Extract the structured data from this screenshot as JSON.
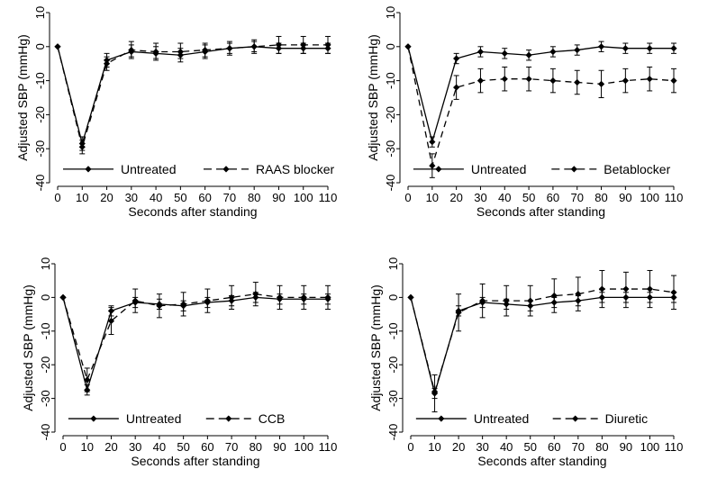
{
  "chart_data": [
    {
      "type": "line",
      "xlabel": "Seconds after standing",
      "ylabel": "Adjusted SBP (mmHg)",
      "xlim": [
        0,
        110
      ],
      "ylim": [
        -40,
        10
      ],
      "x": [
        0,
        10,
        20,
        30,
        40,
        50,
        60,
        70,
        80,
        90,
        100,
        110
      ],
      "xticks": [
        "0",
        "10",
        "20",
        "30",
        "40",
        "50",
        "60",
        "70",
        "80",
        "90",
        "100",
        "110"
      ],
      "yticks": [
        "10",
        "0",
        "-10",
        "-20",
        "-30",
        "-40"
      ],
      "grid": false,
      "legend_position": "bottom",
      "series": [
        {
          "name": "Untreated",
          "style": "solid",
          "values": [
            0,
            -28.5,
            -4,
            -1.5,
            -2,
            -2.5,
            -1.5,
            -0.5,
            0,
            -0.5,
            -0.5,
            -0.5
          ],
          "lower": [
            0,
            -30.5,
            -6,
            -3.5,
            -4,
            -4.5,
            -3.5,
            -2,
            -1.5,
            -2,
            -2,
            -2
          ],
          "upper": [
            0,
            -26.5,
            -2,
            0.5,
            0,
            -0.5,
            0.5,
            1,
            1.5,
            1,
            1,
            1
          ]
        },
        {
          "name": "RAAS blocker",
          "style": "dashed",
          "values": [
            0,
            -29.5,
            -5,
            -1,
            -1.5,
            -1.5,
            -1,
            -0.5,
            0,
            0.5,
            0.5,
            0.5
          ],
          "lower": [
            0,
            -31.5,
            -7,
            -3,
            -3.5,
            -3.5,
            -3,
            -2.5,
            -2,
            -2,
            -2,
            -2
          ],
          "upper": [
            0,
            -27.5,
            -3,
            1.5,
            1,
            1,
            1,
            1.5,
            2,
            3,
            3,
            3
          ]
        }
      ]
    },
    {
      "type": "line",
      "xlabel": "Seconds after standing",
      "ylabel": "Adjusted SBP (mmHg)",
      "xlim": [
        0,
        110
      ],
      "ylim": [
        -40,
        10
      ],
      "x": [
        0,
        10,
        20,
        30,
        40,
        50,
        60,
        70,
        80,
        90,
        100,
        110
      ],
      "xticks": [
        "0",
        "10",
        "20",
        "30",
        "40",
        "50",
        "60",
        "70",
        "80",
        "90",
        "100",
        "110"
      ],
      "yticks": [
        "10",
        "0",
        "-10",
        "-20",
        "-30",
        "-40"
      ],
      "grid": false,
      "legend_position": "bottom",
      "series": [
        {
          "name": "Untreated",
          "style": "solid",
          "values": [
            0,
            -28,
            -3.5,
            -1.5,
            -2,
            -2.5,
            -1.5,
            -1,
            0,
            -0.5,
            -0.5,
            -0.5
          ],
          "lower": [
            0,
            -29.5,
            -5,
            -3,
            -3.5,
            -4,
            -3,
            -2.5,
            -1.5,
            -2,
            -2,
            -2
          ],
          "upper": [
            0,
            -26.5,
            -2,
            0,
            -0.5,
            -1,
            0,
            0.5,
            1.5,
            1,
            1,
            1
          ]
        },
        {
          "name": "Betablocker",
          "style": "dashed",
          "values": [
            0,
            -35,
            -12,
            -10,
            -9.5,
            -9.5,
            -10,
            -10.5,
            -11,
            -10,
            -9.5,
            -10
          ],
          "lower": [
            0,
            -38.5,
            -15.5,
            -13.5,
            -13,
            -13,
            -13.5,
            -14,
            -15,
            -13.5,
            -13,
            -13.5
          ],
          "upper": [
            0,
            -31.5,
            -8.5,
            -6.5,
            -6,
            -6,
            -6.5,
            -7,
            -7,
            -6.5,
            -6,
            -6.5
          ]
        }
      ]
    },
    {
      "type": "line",
      "xlabel": "Seconds after standing",
      "ylabel": "Adjusted SBP (mmHg)",
      "xlim": [
        0,
        110
      ],
      "ylim": [
        -40,
        10
      ],
      "x": [
        0,
        10,
        20,
        30,
        40,
        50,
        60,
        70,
        80,
        90,
        100,
        110
      ],
      "xticks": [
        "0",
        "10",
        "20",
        "30",
        "40",
        "50",
        "60",
        "70",
        "80",
        "90",
        "100",
        "110"
      ],
      "yticks": [
        "10",
        "0",
        "-10",
        "-20",
        "-30",
        "-40"
      ],
      "grid": false,
      "legend_position": "bottom",
      "series": [
        {
          "name": "Untreated",
          "style": "solid",
          "values": [
            0,
            -27.5,
            -4,
            -1.5,
            -2,
            -2.5,
            -1.5,
            -1,
            0,
            -0.5,
            -0.5,
            -0.5
          ],
          "lower": [
            0,
            -29,
            -5.5,
            -3,
            -3.5,
            -4,
            -3,
            -2.5,
            -1.5,
            -2,
            -2,
            -2
          ],
          "upper": [
            0,
            -26,
            -2.5,
            0,
            -0.5,
            -1,
            0,
            0.5,
            1.5,
            1,
            1,
            1
          ]
        },
        {
          "name": "CCB",
          "style": "dashed",
          "values": [
            0,
            -24.5,
            -7,
            -1,
            -2.5,
            -2,
            -1,
            0,
            1,
            0,
            0,
            0
          ],
          "lower": [
            0,
            -28,
            -11,
            -4.5,
            -6,
            -5.5,
            -4.5,
            -3.5,
            -2.5,
            -3.5,
            -3.5,
            -3.5
          ],
          "upper": [
            0,
            -21,
            -3,
            2.5,
            1,
            1.5,
            2.5,
            3.5,
            4.5,
            3.5,
            3.5,
            3.5
          ]
        }
      ]
    },
    {
      "type": "line",
      "xlabel": "Seconds after standing",
      "ylabel": "Adjusted SBP (mmHg)",
      "xlim": [
        0,
        110
      ],
      "ylim": [
        -40,
        10
      ],
      "x": [
        0,
        10,
        20,
        30,
        40,
        50,
        60,
        70,
        80,
        90,
        100,
        110
      ],
      "xticks": [
        "0",
        "10",
        "20",
        "30",
        "40",
        "50",
        "60",
        "70",
        "80",
        "90",
        "100",
        "110"
      ],
      "yticks": [
        "10",
        "0",
        "-10",
        "-20",
        "-30",
        "-40"
      ],
      "grid": false,
      "legend_position": "bottom",
      "series": [
        {
          "name": "Untreated",
          "style": "solid",
          "values": [
            0,
            -28.5,
            -4,
            -1.5,
            -2,
            -2.5,
            -1.5,
            -1,
            0,
            0,
            0,
            0
          ],
          "lower": [
            0,
            -30,
            -5.5,
            -3,
            -3.5,
            -4,
            -3,
            -2.5,
            -1.5,
            -1.5,
            -1.5,
            -1.5
          ],
          "upper": [
            0,
            -27,
            -2.5,
            0,
            -0.5,
            -1,
            0,
            0.5,
            1.5,
            1.5,
            1.5,
            1.5
          ]
        },
        {
          "name": "Diuretic",
          "style": "dashed",
          "values": [
            0,
            -28,
            -4.5,
            -1,
            -1,
            -1,
            0.5,
            1,
            2.5,
            2.5,
            2.5,
            1.5
          ],
          "lower": [
            0,
            -34,
            -10,
            -6,
            -5.5,
            -5.5,
            -4.5,
            -4,
            -3,
            -3,
            -3,
            -3.5
          ],
          "upper": [
            0,
            -23,
            1,
            4,
            3.5,
            3.5,
            5.5,
            6,
            8,
            7.5,
            8,
            6.5
          ]
        }
      ]
    }
  ]
}
